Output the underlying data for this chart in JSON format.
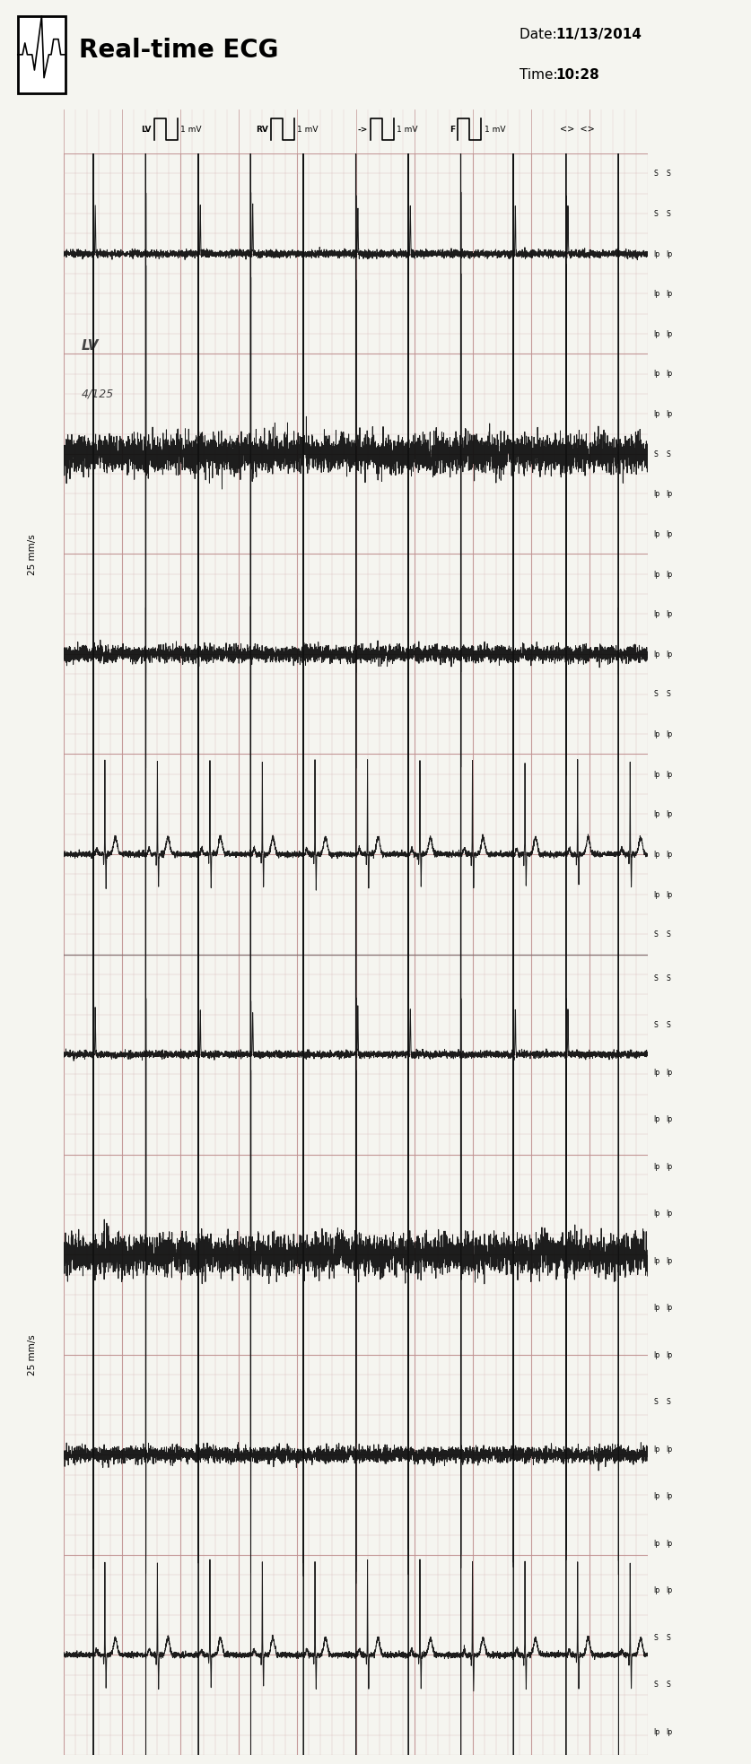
{
  "title": "Real-time ECG",
  "date": "11/13/2014",
  "time": "10:28",
  "paper_color": "#f5f5f0",
  "grid_minor_color": "#d8b8b8",
  "grid_major_color": "#c09090",
  "ecg_color": "#111111",
  "fig_width": 8.18,
  "fig_height": 19.7,
  "dpi": 100,
  "channel_labels": [
    "LV",
    "RV",
    "->",
    "F"
  ],
  "right_markers_strip1": [
    "S",
    "S",
    "Ip",
    "Ip",
    "Ip",
    "Ip",
    "Ip",
    "S",
    "Ip",
    "Ip",
    "Ip",
    "Ip",
    "Ip",
    "S",
    "Ip",
    "Ip",
    "Ip",
    "Ip",
    "Ip",
    "S"
  ],
  "right_markers_strip2": [
    "S",
    "S",
    "Ip",
    "Ip",
    "Ip",
    "Ip",
    "Ip",
    "Ip",
    "Ip",
    "S",
    "Ip",
    "Ip",
    "Ip",
    "Ip",
    "S",
    "S",
    "Ip"
  ],
  "speed_label": "25 mm/s",
  "annotation_text": "LV\n4/125"
}
